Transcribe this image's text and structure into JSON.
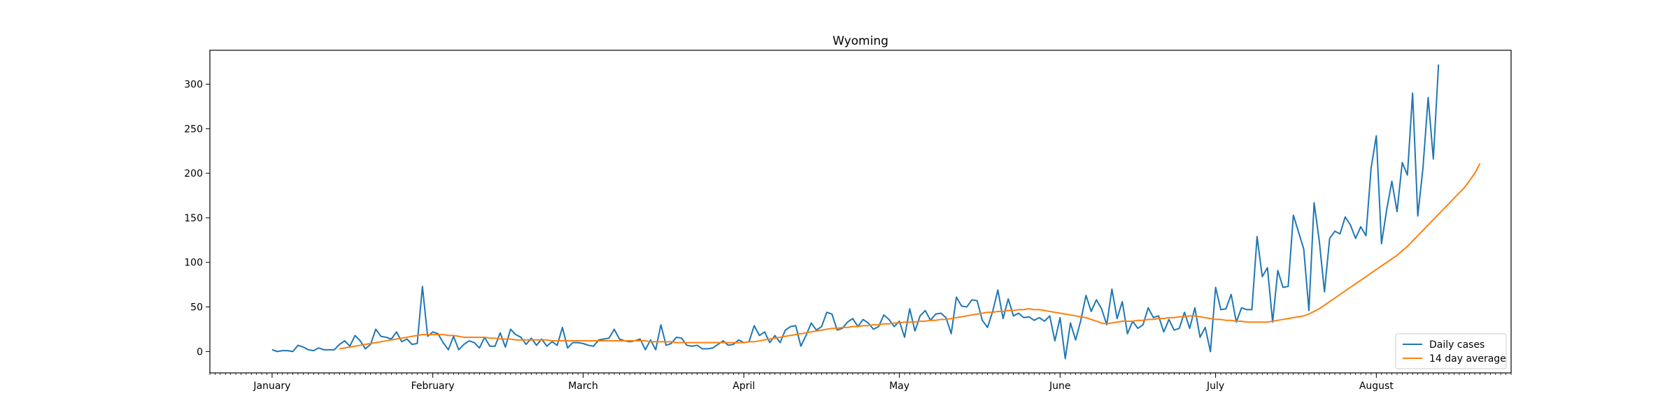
{
  "chart_data": {
    "type": "line",
    "title": "Wyoming",
    "xlabel": "",
    "ylabel": "",
    "x_start": "2020-01-01",
    "x_end": "2020-08-14",
    "x_ticks": [
      "January",
      "February",
      "March",
      "April",
      "May",
      "June",
      "July",
      "August"
    ],
    "xlim": [
      "2019-12-20",
      "2020-08-27"
    ],
    "ylim": [
      -24,
      338
    ],
    "yticks": [
      0,
      50,
      100,
      150,
      200,
      250,
      300
    ],
    "grid": false,
    "legend_position": "lower-right",
    "series": [
      {
        "name": "Daily cases",
        "color": "#1f77b4",
        "values": [
          2,
          0,
          1,
          1,
          0,
          7,
          5,
          2,
          1,
          4,
          2,
          2,
          2,
          8,
          12,
          6,
          18,
          12,
          3,
          8,
          25,
          17,
          16,
          14,
          22,
          11,
          14,
          8,
          9,
          73,
          17,
          22,
          20,
          10,
          2,
          17,
          2,
          8,
          12,
          10,
          4,
          16,
          6,
          6,
          21,
          5,
          25,
          19,
          16,
          8,
          15,
          7,
          14,
          6,
          11,
          7,
          27,
          4,
          10,
          10,
          9,
          7,
          6,
          13,
          14,
          15,
          25,
          14,
          12,
          11,
          12,
          14,
          2,
          13,
          2,
          30,
          7,
          9,
          16,
          15,
          7,
          6,
          7,
          3,
          3,
          4,
          8,
          12,
          7,
          8,
          13,
          10,
          11,
          29,
          18,
          22,
          10,
          18,
          10,
          24,
          28,
          29,
          6,
          18,
          32,
          24,
          28,
          44,
          42,
          24,
          26,
          33,
          37,
          28,
          36,
          32,
          25,
          28,
          41,
          36,
          28,
          34,
          16,
          48,
          23,
          40,
          46,
          35,
          42,
          43,
          38,
          20,
          61,
          51,
          50,
          58,
          57,
          35,
          27,
          45,
          69,
          37,
          59,
          40,
          43,
          38,
          39,
          35,
          38,
          34,
          40,
          12,
          38,
          -8,
          32,
          13,
          35,
          63,
          45,
          58,
          48,
          30,
          70,
          37,
          56,
          20,
          34,
          26,
          30,
          49,
          38,
          40,
          22,
          36,
          24,
          26,
          44,
          26,
          49,
          16,
          27,
          0,
          72,
          47,
          48,
          64,
          33,
          49,
          47,
          47,
          129,
          84,
          94,
          33,
          91,
          72,
          73,
          153,
          134,
          115,
          46,
          167,
          124,
          67,
          127,
          135,
          132,
          151,
          142,
          127,
          140,
          130,
          206,
          242,
          121,
          159,
          191,
          157,
          212,
          198,
          290,
          152,
          206,
          285,
          216,
          322
        ]
      },
      {
        "name": "14 day average",
        "color": "#ff7f0e",
        "values": [
          3,
          4,
          5,
          6,
          7,
          8,
          9,
          10,
          11,
          12,
          13,
          14,
          15,
          16,
          17,
          18,
          19,
          19,
          19,
          19,
          19,
          18,
          18,
          17,
          16,
          16,
          16,
          16,
          16,
          15,
          15,
          14,
          14,
          14,
          13,
          13,
          13,
          13,
          13,
          13,
          13,
          12,
          12,
          12,
          12,
          12,
          12,
          12,
          12,
          12,
          12,
          12,
          12,
          12,
          12,
          12,
          12,
          12,
          12,
          12,
          11,
          11,
          11,
          11,
          11,
          10,
          10,
          10,
          10,
          10,
          10,
          10,
          10,
          10,
          10,
          10,
          10,
          10,
          10,
          11,
          11,
          12,
          13,
          14,
          15,
          16,
          17,
          18,
          19,
          20,
          21,
          22,
          23,
          24,
          25,
          26,
          26,
          27,
          27,
          28,
          28,
          29,
          29,
          30,
          30,
          31,
          31,
          32,
          32,
          33,
          33,
          33,
          34,
          34,
          35,
          35,
          36,
          36,
          37,
          38,
          39,
          40,
          41,
          42,
          43,
          44,
          44,
          45,
          45,
          46,
          46,
          47,
          47,
          48,
          47,
          47,
          46,
          45,
          44,
          43,
          42,
          41,
          40,
          39,
          38,
          36,
          34,
          32,
          31,
          32,
          33,
          34,
          34,
          34,
          35,
          35,
          36,
          36,
          37,
          37,
          38,
          38,
          39,
          39,
          40,
          40,
          39,
          38,
          37,
          36,
          36,
          35,
          35,
          34,
          34,
          33,
          33,
          33,
          33,
          33,
          34,
          35,
          36,
          37,
          38,
          39,
          40,
          42,
          45,
          48,
          52,
          56,
          60,
          64,
          68,
          72,
          76,
          80,
          84,
          88,
          92,
          96,
          100,
          104,
          108,
          113,
          118,
          124,
          130,
          136,
          142,
          148,
          154,
          160,
          166,
          172,
          178,
          184,
          192,
          200,
          211
        ]
      }
    ]
  }
}
